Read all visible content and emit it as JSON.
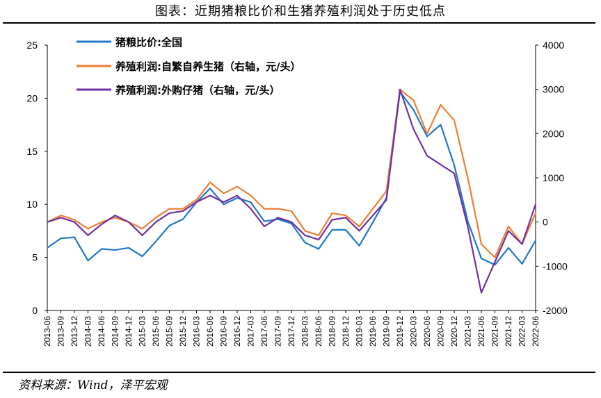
{
  "title": "图表：近期猪粮比价和生猪养殖利润处于历史低点",
  "source": "资料来源：Wind，泽平宏观",
  "chart_data": {
    "type": "line",
    "title": "图表：近期猪粮比价和生猪养殖利润处于历史低点",
    "xlabel": "",
    "ylabel": "",
    "ylim": [
      0,
      25
    ],
    "y2lim": [
      -2000,
      4000
    ],
    "yticks": [
      "0",
      "5",
      "10",
      "15",
      "20",
      "25"
    ],
    "y2ticks": [
      "-2000",
      "-1000",
      "0",
      "1000",
      "2000",
      "3000",
      "4000"
    ],
    "grid": false,
    "legend_position": "top-left",
    "x": [
      "2013-06",
      "2013-09",
      "2013-12",
      "2014-03",
      "2014-06",
      "2014-09",
      "2014-12",
      "2015-03",
      "2015-06",
      "2015-09",
      "2015-12",
      "2016-03",
      "2016-06",
      "2016-09",
      "2016-12",
      "2017-03",
      "2017-06",
      "2017-09",
      "2017-12",
      "2018-03",
      "2018-06",
      "2018-09",
      "2018-12",
      "2019-03",
      "2019-06",
      "2019-09",
      "2019-12",
      "2020-03",
      "2020-06",
      "2020-09",
      "2020-12",
      "2021-03",
      "2021-06",
      "2021-09",
      "2021-12",
      "2022-03",
      "2022-06"
    ],
    "series": [
      {
        "name": "猪粮比价:全国",
        "axis": "left",
        "color": "#1f77c4",
        "values": [
          5.9,
          6.8,
          6.9,
          4.7,
          5.8,
          5.7,
          5.9,
          5.1,
          6.5,
          8.0,
          8.6,
          10.2,
          11.5,
          10.0,
          10.6,
          10.2,
          8.4,
          8.6,
          8.2,
          6.4,
          5.8,
          7.6,
          7.6,
          6.1,
          8.3,
          10.6,
          20.6,
          18.9,
          16.4,
          17.5,
          13.7,
          8.4,
          4.9,
          4.3,
          5.9,
          4.4,
          6.6
        ]
      },
      {
        "name": "养殖利润:自繁自养生猪（右轴，元/头）",
        "axis": "right",
        "color": "#ed7d31",
        "values": [
          0,
          150,
          50,
          -150,
          0,
          100,
          0,
          -150,
          100,
          300,
          300,
          500,
          900,
          650,
          800,
          600,
          300,
          300,
          250,
          -200,
          -300,
          200,
          150,
          -100,
          300,
          700,
          3000,
          2750,
          2000,
          2650,
          2300,
          1000,
          -500,
          -800,
          -100,
          -500,
          200
        ]
      },
      {
        "name": "养殖利润:外购仔猪（右轴，元/头）",
        "axis": "right",
        "color": "#7030a0",
        "values": [
          0,
          100,
          0,
          -300,
          -50,
          150,
          0,
          -300,
          0,
          200,
          250,
          450,
          600,
          450,
          600,
          300,
          -100,
          100,
          0,
          -300,
          -400,
          50,
          100,
          -200,
          150,
          500,
          3000,
          2100,
          1500,
          1300,
          1100,
          -100,
          -1600,
          -900,
          -200,
          -500,
          400
        ]
      }
    ]
  }
}
